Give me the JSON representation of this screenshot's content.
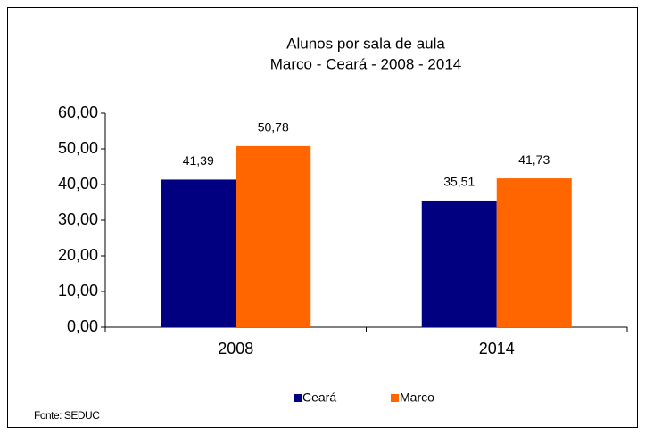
{
  "chart_data": {
    "type": "bar",
    "title": "Alunos por sala de aula",
    "subtitle": "Marco - Ceará - 2008 - 2014",
    "categories": [
      "2008",
      "2014"
    ],
    "series": [
      {
        "name": "Ceará",
        "color": "#000080",
        "values": [
          41.39,
          35.51
        ],
        "value_labels": [
          "41,39",
          "35,51"
        ]
      },
      {
        "name": "Marco",
        "color": "#ff6600",
        "values": [
          50.78,
          41.73
        ],
        "value_labels": [
          "50,78",
          "41,73"
        ]
      }
    ],
    "ylim": [
      0,
      60
    ],
    "yticks": [
      {
        "value": 0,
        "label": "0,00"
      },
      {
        "value": 10,
        "label": "10,00"
      },
      {
        "value": 20,
        "label": "20,00"
      },
      {
        "value": 30,
        "label": "30,00"
      },
      {
        "value": 40,
        "label": "40,00"
      },
      {
        "value": 50,
        "label": "50,00"
      },
      {
        "value": 60,
        "label": "60,00"
      }
    ],
    "legend": "bottom",
    "source": "Fonte: SEDUC"
  }
}
